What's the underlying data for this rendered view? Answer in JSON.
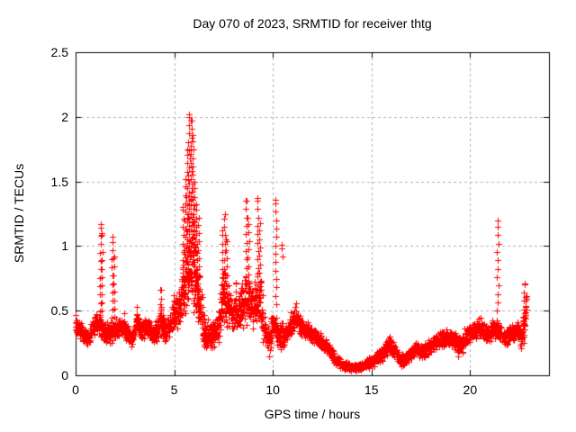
{
  "page": {
    "background": "#ffffff",
    "text_color": "#000000"
  },
  "chart_data": {
    "type": "scatter",
    "title": "Day 070 of 2023, SRMTID for receiver thtg",
    "xlabel": "GPS time / hours",
    "ylabel": "SRMTID / TECUs",
    "xlim": [
      0,
      24
    ],
    "ylim": [
      0,
      2.5
    ],
    "xticks": [
      0,
      5,
      10,
      15,
      20
    ],
    "xtick_labels": [
      "0",
      "5",
      "10",
      "15",
      "20"
    ],
    "yticks": [
      0,
      0.5,
      1,
      1.5,
      2,
      2.5
    ],
    "ytick_labels": [
      "0",
      "0.5",
      "1",
      "1.5",
      "2",
      "2.5"
    ],
    "grid": true,
    "grid_style": "dashed",
    "legend": "none",
    "marker": "plus",
    "marker_color": "#ff0000",
    "grid_color": "#b0b0b0",
    "border_color": "#000000",
    "x_start": 0.0,
    "x_end": 22.85,
    "sample_step": 0.012,
    "spike_step": 0.065,
    "seed": 42,
    "peak_value": 2.02,
    "peak_time": 5.8,
    "min_value": 0.05,
    "band_mean_halfwidth": [
      [
        0.0,
        0.4,
        0.08
      ],
      [
        0.3,
        0.33,
        0.07
      ],
      [
        0.6,
        0.27,
        0.06
      ],
      [
        0.9,
        0.38,
        0.08
      ],
      [
        1.15,
        0.42,
        0.1
      ],
      [
        1.45,
        0.32,
        0.09
      ],
      [
        1.75,
        0.33,
        0.09
      ],
      [
        2.05,
        0.36,
        0.08
      ],
      [
        2.4,
        0.37,
        0.08
      ],
      [
        2.65,
        0.32,
        0.07
      ],
      [
        2.85,
        0.27,
        0.06
      ],
      [
        3.1,
        0.41,
        0.09
      ],
      [
        3.4,
        0.34,
        0.08
      ],
      [
        3.7,
        0.38,
        0.08
      ],
      [
        4.0,
        0.3,
        0.09
      ],
      [
        4.3,
        0.42,
        0.15
      ],
      [
        4.6,
        0.33,
        0.09
      ],
      [
        4.9,
        0.45,
        0.12
      ],
      [
        5.2,
        0.5,
        0.16
      ],
      [
        5.5,
        0.7,
        0.3
      ],
      [
        5.8,
        0.95,
        0.5
      ],
      [
        6.1,
        0.8,
        0.4
      ],
      [
        6.35,
        0.5,
        0.22
      ],
      [
        6.6,
        0.28,
        0.17
      ],
      [
        6.9,
        0.3,
        0.14
      ],
      [
        7.2,
        0.36,
        0.14
      ],
      [
        7.5,
        0.6,
        0.28
      ],
      [
        7.9,
        0.5,
        0.16
      ],
      [
        8.2,
        0.46,
        0.13
      ],
      [
        8.6,
        0.6,
        0.25
      ],
      [
        9.0,
        0.52,
        0.2
      ],
      [
        9.3,
        0.62,
        0.28
      ],
      [
        9.6,
        0.3,
        0.16
      ],
      [
        9.8,
        0.25,
        0.13
      ],
      [
        10.05,
        0.42,
        0.1
      ],
      [
        10.35,
        0.28,
        0.13
      ],
      [
        10.7,
        0.33,
        0.1
      ],
      [
        11.1,
        0.44,
        0.1
      ],
      [
        11.45,
        0.37,
        0.08
      ],
      [
        11.9,
        0.33,
        0.07
      ],
      [
        12.3,
        0.28,
        0.06
      ],
      [
        12.7,
        0.22,
        0.06
      ],
      [
        13.1,
        0.14,
        0.05
      ],
      [
        13.5,
        0.08,
        0.04
      ],
      [
        14.0,
        0.06,
        0.03
      ],
      [
        14.5,
        0.07,
        0.03
      ],
      [
        15.0,
        0.1,
        0.05
      ],
      [
        15.5,
        0.16,
        0.06
      ],
      [
        15.9,
        0.24,
        0.07
      ],
      [
        16.2,
        0.19,
        0.06
      ],
      [
        16.5,
        0.11,
        0.05
      ],
      [
        16.8,
        0.14,
        0.05
      ],
      [
        17.2,
        0.2,
        0.06
      ],
      [
        17.6,
        0.18,
        0.06
      ],
      [
        18.0,
        0.23,
        0.06
      ],
      [
        18.5,
        0.28,
        0.07
      ],
      [
        19.0,
        0.3,
        0.07
      ],
      [
        19.4,
        0.24,
        0.1
      ],
      [
        19.8,
        0.28,
        0.09
      ],
      [
        20.2,
        0.33,
        0.08
      ],
      [
        20.5,
        0.38,
        0.09
      ],
      [
        20.9,
        0.31,
        0.08
      ],
      [
        21.2,
        0.36,
        0.08
      ],
      [
        21.45,
        0.34,
        0.08
      ],
      [
        21.75,
        0.27,
        0.08
      ],
      [
        22.1,
        0.32,
        0.08
      ],
      [
        22.4,
        0.36,
        0.08
      ],
      [
        22.6,
        0.28,
        0.1
      ],
      [
        22.75,
        0.42,
        0.14
      ],
      [
        22.85,
        0.55,
        0.1
      ]
    ],
    "spike_columns": [
      [
        1.27,
        0.3,
        1.17
      ],
      [
        1.33,
        0.5,
        1.1
      ],
      [
        1.86,
        0.25,
        1.07
      ],
      [
        1.93,
        0.45,
        0.92
      ],
      [
        2.45,
        0.35,
        0.48
      ],
      [
        3.12,
        0.4,
        0.53
      ],
      [
        4.32,
        0.4,
        0.66
      ],
      [
        4.95,
        0.45,
        0.62
      ],
      [
        5.45,
        0.5,
        1.3
      ],
      [
        5.55,
        0.55,
        1.52
      ],
      [
        5.65,
        0.6,
        1.75
      ],
      [
        5.75,
        0.7,
        2.02
      ],
      [
        5.85,
        0.8,
        1.97
      ],
      [
        5.93,
        0.9,
        1.86
      ],
      [
        6.02,
        0.6,
        1.5
      ],
      [
        6.12,
        0.5,
        1.32
      ],
      [
        6.22,
        0.45,
        1.22
      ],
      [
        7.45,
        0.5,
        1.12
      ],
      [
        7.55,
        0.5,
        1.25
      ],
      [
        7.65,
        0.45,
        1.05
      ],
      [
        8.1,
        0.45,
        0.72
      ],
      [
        8.65,
        0.7,
        1.35
      ],
      [
        8.75,
        0.65,
        1.22
      ],
      [
        9.25,
        0.7,
        1.37
      ],
      [
        9.35,
        0.6,
        1.18
      ],
      [
        10.15,
        0.55,
        1.36
      ],
      [
        10.45,
        0.92,
        1.01
      ],
      [
        11.15,
        0.4,
        0.56
      ],
      [
        15.95,
        0.2,
        0.3
      ],
      [
        21.4,
        0.5,
        1.2
      ],
      [
        22.75,
        0.25,
        0.71
      ]
    ]
  }
}
